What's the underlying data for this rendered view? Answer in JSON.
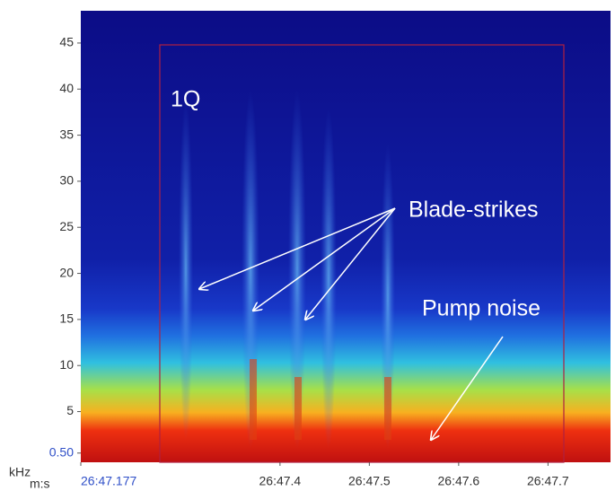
{
  "chart_data": {
    "type": "spectrogram",
    "y_label": "kHz",
    "x_label": "m:s",
    "ylim": [
      -0.5,
      48.5
    ],
    "yticks": [
      {
        "value": 0.5,
        "label": "0.50"
      },
      5,
      10,
      15,
      20,
      25,
      30,
      35,
      40,
      45
    ],
    "xlim": [
      1607.177,
      1607.77
    ],
    "xticks": [
      {
        "value": 1607.177,
        "label": "26:47.177"
      },
      {
        "value": 1607.4,
        "label": "26:47.4"
      },
      {
        "value": 1607.5,
        "label": "26:47.5"
      },
      {
        "value": 1607.6,
        "label": "26:47.6"
      },
      {
        "value": 1607.7,
        "label": "26:47.7"
      }
    ],
    "annotations": [
      "1Q",
      "Blade-strikes",
      "Pump noise"
    ]
  }
}
